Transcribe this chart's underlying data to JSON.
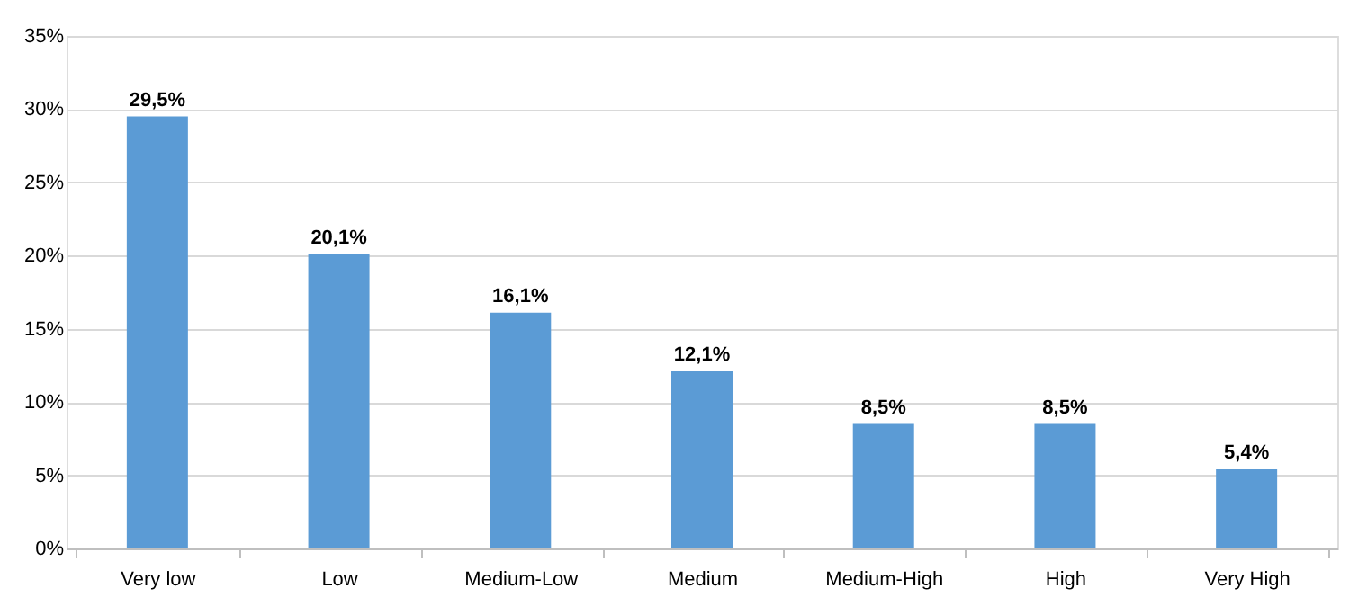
{
  "chart_data": {
    "type": "bar",
    "categories": [
      "Very low",
      "Low",
      "Medium-Low",
      "Medium",
      "Medium-High",
      "High",
      "Very High"
    ],
    "values": [
      29.5,
      20.1,
      16.1,
      12.1,
      8.5,
      8.5,
      5.4
    ],
    "value_labels": [
      "29,5%",
      "20,1%",
      "16,1%",
      "12,1%",
      "8,5%",
      "8,5%",
      "5,4%"
    ],
    "color": "#5b9bd5",
    "ylim": [
      0,
      35
    ],
    "yticks": [
      {
        "value": 0,
        "label": "0%"
      },
      {
        "value": 5,
        "label": "5%"
      },
      {
        "value": 10,
        "label": "10%"
      },
      {
        "value": 15,
        "label": "15%"
      },
      {
        "value": 20,
        "label": "20%"
      },
      {
        "value": 25,
        "label": "25%"
      },
      {
        "value": 30,
        "label": "30%"
      },
      {
        "value": 35,
        "label": "35%"
      }
    ],
    "grid": "y"
  }
}
